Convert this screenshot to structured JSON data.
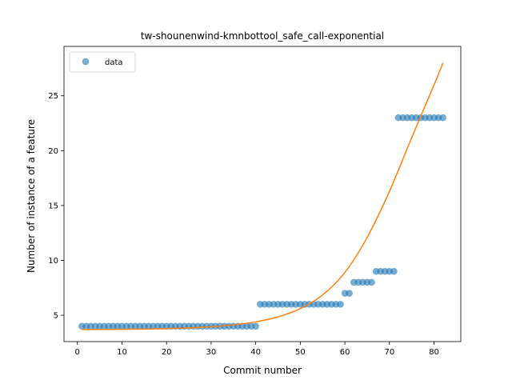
{
  "chart_data": {
    "type": "scatter",
    "title": "tw-shounenwind-kmnbottool_safe_call-exponential",
    "xlabel": "Commit number",
    "ylabel": "Number of instance of a feature",
    "xlim": [
      -3,
      86
    ],
    "ylim": [
      2.6,
      29.5
    ],
    "xticks": [
      0,
      10,
      20,
      30,
      40,
      50,
      60,
      70,
      80
    ],
    "yticks": [
      5,
      10,
      15,
      20,
      25
    ],
    "grid": false,
    "legend": {
      "placement": "upper-left",
      "entries": [
        "data"
      ]
    },
    "series": [
      {
        "name": "data",
        "kind": "scatter",
        "color": "#1f77b4",
        "x": [
          1,
          2,
          3,
          4,
          5,
          6,
          7,
          8,
          9,
          10,
          11,
          12,
          13,
          14,
          15,
          16,
          17,
          18,
          19,
          20,
          21,
          22,
          23,
          24,
          25,
          26,
          27,
          28,
          29,
          30,
          31,
          32,
          33,
          34,
          35,
          36,
          37,
          38,
          39,
          40,
          41,
          42,
          43,
          44,
          45,
          46,
          47,
          48,
          49,
          50,
          51,
          52,
          53,
          54,
          55,
          56,
          57,
          58,
          59,
          60,
          61,
          62,
          63,
          64,
          65,
          66,
          67,
          68,
          69,
          70,
          71,
          72,
          73,
          74,
          75,
          76,
          77,
          78,
          79,
          80,
          81,
          82
        ],
        "y": [
          4,
          4,
          4,
          4,
          4,
          4,
          4,
          4,
          4,
          4,
          4,
          4,
          4,
          4,
          4,
          4,
          4,
          4,
          4,
          4,
          4,
          4,
          4,
          4,
          4,
          4,
          4,
          4,
          4,
          4,
          4,
          4,
          4,
          4,
          4,
          4,
          4,
          4,
          4,
          4,
          6,
          6,
          6,
          6,
          6,
          6,
          6,
          6,
          6,
          6,
          6,
          6,
          6,
          6,
          6,
          6,
          6,
          6,
          6,
          7,
          7,
          8,
          8,
          8,
          8,
          8,
          9,
          9,
          9,
          9,
          9,
          23,
          23,
          23,
          23,
          23,
          23,
          23,
          23,
          23,
          23,
          23
        ]
      },
      {
        "name": "",
        "kind": "line",
        "color": "#ff7f0e",
        "x": [
          1,
          10,
          20,
          30,
          35,
          40,
          45,
          50,
          55,
          60,
          65,
          70,
          75,
          80,
          82
        ],
        "y": [
          3.7,
          3.72,
          3.78,
          3.95,
          4.12,
          4.4,
          4.85,
          5.6,
          6.85,
          8.9,
          12.1,
          16.3,
          21.2,
          26.0,
          28.0
        ]
      }
    ]
  }
}
